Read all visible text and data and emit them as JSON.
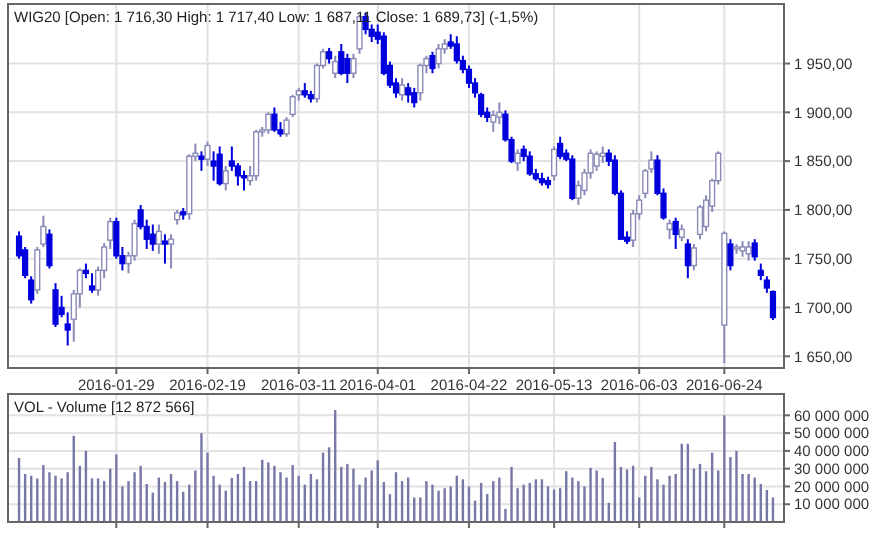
{
  "chart_data": [
    {
      "type": "candlestick",
      "title": "WIG20 [Open: 1 716,30  High: 1 717,40  Low: 1 687,11  Close: 1 689,73] (-1,5%)",
      "categories": [
        null,
        null,
        null,
        null,
        null,
        null,
        null,
        null,
        null,
        null,
        null,
        null,
        null,
        null,
        null,
        null,
        "2016-01-29",
        null,
        null,
        null,
        null,
        null,
        null,
        null,
        null,
        null,
        null,
        null,
        null,
        null,
        null,
        "2016-02-19",
        null,
        null,
        null,
        null,
        null,
        null,
        null,
        null,
        null,
        null,
        null,
        null,
        null,
        null,
        "2016-03-11",
        null,
        null,
        null,
        null,
        null,
        null,
        null,
        null,
        null,
        null,
        null,
        null,
        "2016-04-01",
        null,
        null,
        null,
        null,
        null,
        null,
        null,
        null,
        null,
        null,
        null,
        null,
        null,
        null,
        "2016-04-22",
        null,
        null,
        null,
        null,
        null,
        null,
        null,
        null,
        null,
        null,
        null,
        null,
        null,
        "2016-05-13",
        null,
        null,
        null,
        null,
        null,
        null,
        null,
        null,
        null,
        null,
        null,
        null,
        null,
        "2016-06-03",
        null,
        null,
        null,
        null,
        null,
        null,
        null,
        null,
        null,
        null,
        null,
        null,
        null,
        "2016-06-24",
        null,
        null,
        null,
        null,
        null,
        null,
        null,
        null
      ],
      "ohlc": [
        [
          1773,
          1778,
          1750,
          1753
        ],
        [
          1759,
          1762,
          1730,
          1733
        ],
        [
          1728,
          1732,
          1704,
          1708
        ],
        [
          1718,
          1762,
          1714,
          1759
        ],
        [
          1765,
          1794,
          1762,
          1783
        ],
        [
          1775,
          1780,
          1740,
          1743
        ],
        [
          1718,
          1725,
          1680,
          1683
        ],
        [
          1700,
          1712,
          1690,
          1693
        ],
        [
          1683,
          1695,
          1661,
          1677
        ],
        [
          1688,
          1718,
          1665,
          1714
        ],
        [
          1714,
          1740,
          1700,
          1738
        ],
        [
          1738,
          1745,
          1730,
          1735
        ],
        [
          1722,
          1735,
          1715,
          1718
        ],
        [
          1718,
          1742,
          1712,
          1738
        ],
        [
          1738,
          1766,
          1730,
          1762
        ],
        [
          1769,
          1792,
          1760,
          1788
        ],
        [
          1788,
          1792,
          1750,
          1753
        ],
        [
          1753,
          1762,
          1738,
          1745
        ],
        [
          1745,
          1757,
          1735,
          1753
        ],
        [
          1753,
          1790,
          1748,
          1786
        ],
        [
          1800,
          1805,
          1780,
          1783
        ],
        [
          1783,
          1790,
          1760,
          1770
        ],
        [
          1775,
          1785,
          1758,
          1765
        ],
        [
          1765,
          1785,
          1755,
          1778
        ],
        [
          1768,
          1775,
          1745,
          1765
        ],
        [
          1765,
          1775,
          1740,
          1770
        ],
        [
          1790,
          1800,
          1785,
          1797
        ],
        [
          1798,
          1802,
          1790,
          1795
        ],
        [
          1796,
          1857,
          1790,
          1855
        ],
        [
          1855,
          1868,
          1850,
          1858
        ],
        [
          1855,
          1860,
          1840,
          1852
        ],
        [
          1852,
          1870,
          1845,
          1866
        ],
        [
          1850,
          1860,
          1830,
          1845
        ],
        [
          1857,
          1865,
          1825,
          1827
        ],
        [
          1827,
          1845,
          1820,
          1840
        ],
        [
          1850,
          1865,
          1840,
          1845
        ],
        [
          1845,
          1848,
          1825,
          1835
        ],
        [
          1835,
          1840,
          1820,
          1833
        ],
        [
          1830,
          1845,
          1825,
          1835
        ],
        [
          1835,
          1882,
          1830,
          1880
        ],
        [
          1880,
          1885,
          1875,
          1882
        ],
        [
          1882,
          1900,
          1878,
          1898
        ],
        [
          1898,
          1905,
          1880,
          1882
        ],
        [
          1882,
          1890,
          1875,
          1878
        ],
        [
          1878,
          1895,
          1875,
          1892
        ],
        [
          1898,
          1918,
          1895,
          1916
        ],
        [
          1918,
          1925,
          1912,
          1922
        ],
        [
          1922,
          1930,
          1915,
          1918
        ],
        [
          1918,
          1922,
          1910,
          1914
        ],
        [
          1914,
          1950,
          1910,
          1948
        ],
        [
          1948,
          1965,
          1945,
          1962
        ],
        [
          1962,
          1966,
          1950,
          1955
        ],
        [
          1940,
          1958,
          1935,
          1952
        ],
        [
          1962,
          1970,
          1938,
          1940
        ],
        [
          1955,
          1960,
          1930,
          1940
        ],
        [
          1940,
          1960,
          1935,
          1955
        ],
        [
          1965,
          2000,
          1960,
          1998
        ],
        [
          1998,
          2002,
          1980,
          1985
        ],
        [
          1985,
          1990,
          1972,
          1978
        ],
        [
          1982,
          1990,
          1970,
          1975
        ],
        [
          1978,
          1982,
          1938,
          1940
        ],
        [
          1948,
          1952,
          1925,
          1928
        ],
        [
          1930,
          1935,
          1915,
          1920
        ],
        [
          1918,
          1935,
          1912,
          1928
        ],
        [
          1925,
          1930,
          1910,
          1918
        ],
        [
          1920,
          1925,
          1905,
          1910
        ],
        [
          1920,
          1950,
          1912,
          1948
        ],
        [
          1948,
          1958,
          1940,
          1955
        ],
        [
          1958,
          1962,
          1940,
          1945
        ],
        [
          1950,
          1970,
          1945,
          1965
        ],
        [
          1965,
          1975,
          1960,
          1970
        ],
        [
          1972,
          1980,
          1965,
          1968
        ],
        [
          1970,
          1978,
          1950,
          1953
        ],
        [
          1953,
          1958,
          1940,
          1944
        ],
        [
          1944,
          1948,
          1925,
          1930
        ],
        [
          1930,
          1935,
          1915,
          1920
        ],
        [
          1918,
          1920,
          1895,
          1898
        ],
        [
          1900,
          1905,
          1890,
          1895
        ],
        [
          1890,
          1902,
          1880,
          1897
        ],
        [
          1895,
          1910,
          1888,
          1900
        ],
        [
          1898,
          1902,
          1870,
          1872
        ],
        [
          1872,
          1875,
          1848,
          1850
        ],
        [
          1848,
          1862,
          1840,
          1858
        ],
        [
          1862,
          1866,
          1850,
          1855
        ],
        [
          1855,
          1860,
          1835,
          1837
        ],
        [
          1837,
          1842,
          1830,
          1832
        ],
        [
          1832,
          1838,
          1825,
          1828
        ],
        [
          1830,
          1834,
          1822,
          1826
        ],
        [
          1835,
          1865,
          1830,
          1862
        ],
        [
          1868,
          1875,
          1852,
          1855
        ],
        [
          1858,
          1862,
          1850,
          1852
        ],
        [
          1852,
          1856,
          1810,
          1812
        ],
        [
          1812,
          1830,
          1805,
          1825
        ],
        [
          1820,
          1842,
          1815,
          1838
        ],
        [
          1838,
          1862,
          1832,
          1858
        ],
        [
          1845,
          1860,
          1840,
          1857
        ],
        [
          1855,
          1865,
          1848,
          1858
        ],
        [
          1858,
          1862,
          1845,
          1850
        ],
        [
          1851,
          1856,
          1815,
          1817
        ],
        [
          1817,
          1820,
          1770,
          1770
        ],
        [
          1772,
          1778,
          1765,
          1768
        ],
        [
          1769,
          1800,
          1762,
          1796
        ],
        [
          1796,
          1815,
          1790,
          1810
        ],
        [
          1817,
          1842,
          1812,
          1840
        ],
        [
          1842,
          1860,
          1838,
          1851
        ],
        [
          1851,
          1856,
          1815,
          1817
        ],
        [
          1817,
          1822,
          1790,
          1792
        ],
        [
          1780,
          1790,
          1770,
          1786
        ],
        [
          1788,
          1792,
          1760,
          1775
        ],
        [
          1772,
          1785,
          1768,
          1780
        ],
        [
          1765,
          1770,
          1730,
          1743
        ],
        [
          1743,
          1765,
          1738,
          1761
        ],
        [
          1775,
          1805,
          1770,
          1803
        ],
        [
          1783,
          1815,
          1778,
          1810
        ],
        [
          1804,
          1832,
          1798,
          1830
        ],
        [
          1830,
          1860,
          1826,
          1858
        ],
        [
          1682,
          1778,
          1643,
          1776
        ],
        [
          1765,
          1770,
          1738,
          1743
        ],
        [
          1760,
          1765,
          1755,
          1762
        ],
        [
          1758,
          1768,
          1752,
          1762
        ],
        [
          1755,
          1768,
          1748,
          1762
        ],
        [
          1766,
          1770,
          1748,
          1752
        ],
        [
          1738,
          1745,
          1728,
          1733
        ],
        [
          1728,
          1732,
          1715,
          1720
        ],
        [
          1716.3,
          1717.4,
          1687.11,
          1689.73
        ]
      ],
      "ylim": [
        1638,
        2011
      ],
      "yticks": [
        {
          "value": 1650,
          "label": "1 650,00"
        },
        {
          "value": 1700,
          "label": "1 700,00"
        },
        {
          "value": 1750,
          "label": "1 750,00"
        },
        {
          "value": 1800,
          "label": "1 800,00"
        },
        {
          "value": 1850,
          "label": "1 850,00"
        },
        {
          "value": 1900,
          "label": "1 900,00"
        },
        {
          "value": 1950,
          "label": "1 950,00"
        }
      ],
      "grid": true
    },
    {
      "type": "bar",
      "title": "VOL - Volume [12 872 566]",
      "color": "#7777a8",
      "tick_labels": "y",
      "categories": [
        null,
        null,
        null,
        null,
        null,
        null,
        null,
        null,
        null,
        null,
        null,
        null,
        null,
        null,
        null,
        null,
        "2016-01-29",
        null,
        null,
        null,
        null,
        null,
        null,
        null,
        null,
        null,
        null,
        null,
        null,
        null,
        null,
        "2016-02-19",
        null,
        null,
        null,
        null,
        null,
        null,
        null,
        null,
        null,
        null,
        null,
        null,
        null,
        null,
        "2016-03-11",
        null,
        null,
        null,
        null,
        null,
        null,
        null,
        null,
        null,
        null,
        null,
        null,
        "2016-04-01",
        null,
        null,
        null,
        null,
        null,
        null,
        null,
        null,
        null,
        null,
        null,
        null,
        null,
        null,
        "2016-04-22",
        null,
        null,
        null,
        null,
        null,
        null,
        null,
        null,
        null,
        null,
        null,
        null,
        null,
        "2016-05-13",
        null,
        null,
        null,
        null,
        null,
        null,
        null,
        null,
        null,
        null,
        null,
        null,
        null,
        "2016-06-03",
        null,
        null,
        null,
        null,
        null,
        null,
        null,
        null,
        null,
        null,
        null,
        null,
        null,
        "2016-06-24",
        null,
        null,
        null,
        null,
        null,
        null,
        null,
        null
      ],
      "values": [
        36000000,
        27000000,
        26000000,
        24500000,
        32000000,
        28000000,
        26000000,
        24500000,
        28000000,
        48500000,
        31600000,
        40000000,
        24500000,
        24500000,
        23000000,
        30000000,
        38000000,
        20000000,
        23000000,
        28000000,
        31600000,
        21400000,
        16500000,
        25000000,
        22500000,
        27000000,
        23000000,
        17000000,
        21000000,
        29000000,
        50000000,
        39000000,
        26000000,
        21000000,
        17600000,
        24800000,
        27000000,
        31000000,
        23000000,
        23000000,
        35000000,
        33500000,
        31600000,
        28000000,
        25000000,
        32000000,
        26000000,
        21000000,
        27000000,
        24000000,
        39000000,
        42000000,
        63000000,
        31000000,
        32700000,
        30000000,
        21000000,
        25000000,
        29000000,
        34700000,
        22500000,
        15700000,
        28000000,
        23000000,
        25000000,
        13800000,
        13800000,
        23000000,
        21000000,
        17600000,
        19000000,
        20000000,
        26000000,
        24000000,
        20000000,
        12000000,
        22000000,
        15700000,
        23000000,
        25000000,
        7400000,
        31000000,
        19000000,
        21000000,
        22000000,
        24000000,
        24000000,
        20000000,
        18300000,
        19000000,
        28600000,
        25000000,
        23000000,
        20000000,
        30500000,
        29000000,
        24800000,
        10800000,
        45000000,
        31000000,
        29500000,
        31600000,
        13800000,
        26000000,
        31000000,
        24000000,
        21000000,
        26000000,
        27000000,
        44000000,
        44000000,
        30000000,
        32700000,
        28600000,
        39000000,
        29000000,
        60000000,
        36500000,
        40000000,
        27000000,
        27000000,
        25000000,
        21400000,
        18000000,
        13800000
      ],
      "ylim": [
        0,
        72000000
      ],
      "yticks": [
        {
          "value": 10000000,
          "label": "10 000 000"
        },
        {
          "value": 20000000,
          "label": "20 000 000"
        },
        {
          "value": 30000000,
          "label": "30 000 000"
        },
        {
          "value": 40000000,
          "label": "40 000 000"
        },
        {
          "value": 50000000,
          "label": "50 000 000"
        },
        {
          "value": 60000000,
          "label": "60 000 000"
        }
      ],
      "grid": true
    }
  ]
}
